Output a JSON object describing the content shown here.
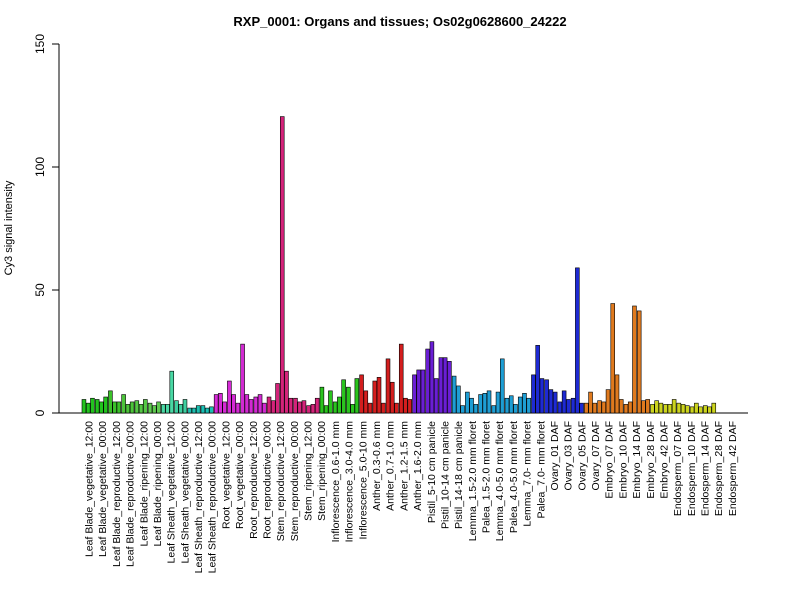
{
  "chart_data": {
    "type": "bar",
    "title": "RXP_0001: Organs and tissues; Os02g0628600_24222",
    "xlabel": "",
    "ylabel": "Cy3 signal intensity",
    "ylim": [
      0,
      150
    ],
    "yticks": [
      0,
      50,
      100,
      150
    ],
    "grid": false,
    "legend": "none",
    "tick_labels": [
      "Leaf Blade_vegetative_12:00",
      "Leaf Blade_vegetative_00:00",
      "Leaf Blade_reproductive_12:00",
      "Leaf Blade_reproductive_00:00",
      "Leaf Blade_ripening_12:00",
      "Leaf Blade_ripening_00:00",
      "Leaf Sheath_vegetative_12:00",
      "Leaf Sheath_vegetative_00:00",
      "Leaf Sheath_reproductive_12:00",
      "Leaf Sheath_reproductive_00:00",
      "Root_vegetative_12:00",
      "Root_vegetative_00:00",
      "Root_reproductive_12:00",
      "Root_reproductive_00:00",
      "Stem_reproductive_12:00",
      "Stem_reproductive_00:00",
      "Stem_ripening_12:00",
      "Stem_ripening_00:00",
      "Inflorescence_0.6-1.0 mm",
      "Inflorescence_3.0-4.0 mm",
      "Inflorescence_5.0-10 mm",
      "Anther_0.3-0.6 mm",
      "Anther_0.7-1.0 mm",
      "Anther_1.2-1.5 mm",
      "Anther_1.6-2.0 mm",
      "Pistil_5-10 cm panicle",
      "Pistil_10-14 cm panicle",
      "Pistil_14-18 cm panicle",
      "Lemma_1.5-2.0 mm floret",
      "Palea_1.5-2.0 mm floret",
      "Lemma_4.0-5.0 mm floret",
      "Palea_4.0-5.0 mm floret",
      "Lemma_7.0- mm floret",
      "Palea_7.0- mm floret",
      "Ovary_01 DAF",
      "Ovary_03 DAF",
      "Ovary_05 DAF",
      "Ovary_07 DAF",
      "Embryo_07 DAF",
      "Embryo_10 DAF",
      "Embryo_14 DAF",
      "Embryo_28 DAF",
      "Embryo_42 DAF",
      "Endosperm_07 DAF",
      "Endosperm_10 DAF",
      "Endosperm_14 DAF",
      "Endosperm_28 DAF",
      "Endosperm_42 DAF"
    ],
    "groups": [
      {
        "color": "#22c41e",
        "values": [
          5.5,
          4,
          6
        ]
      },
      {
        "color": "#22c41e",
        "values": [
          5.5,
          4.5,
          6.5
        ]
      },
      {
        "color": "#3bc12a",
        "values": [
          9,
          4.5,
          4.5
        ]
      },
      {
        "color": "#4cc43a",
        "values": [
          7.5,
          3.5,
          4.5
        ]
      },
      {
        "color": "#55c845",
        "values": [
          5,
          3.5,
          5.5
        ]
      },
      {
        "color": "#5fc950",
        "values": [
          4,
          3,
          4.5
        ]
      },
      {
        "color": "#49d8a4",
        "values": [
          3.5,
          3.5,
          17
        ]
      },
      {
        "color": "#3dd0a0",
        "values": [
          5,
          3.5,
          5.5
        ]
      },
      {
        "color": "#1dbfb0",
        "values": [
          2,
          2,
          3
        ]
      },
      {
        "color": "#19c0b5",
        "values": [
          3,
          2,
          2.5
        ]
      },
      {
        "color": "#d62ad6",
        "values": [
          7.5,
          8,
          4.5
        ]
      },
      {
        "color": "#d62ad6",
        "values": [
          13,
          7.5,
          4
        ]
      },
      {
        "color": "#d22ad2",
        "values": [
          28,
          7.5,
          5.5
        ]
      },
      {
        "color": "#d22ad2",
        "values": [
          6.5,
          7.5,
          4
        ]
      },
      {
        "color": "#d4237a",
        "values": [
          6.5,
          5,
          12
        ]
      },
      {
        "color": "#d4237a",
        "values": [
          120.5,
          17,
          6
        ]
      },
      {
        "color": "#d4237a",
        "values": [
          6,
          4.5,
          5
        ]
      },
      {
        "color": "#d4237a",
        "values": [
          3,
          3.5,
          6
        ]
      },
      {
        "color": "#2ac41e",
        "values": [
          10.5,
          3,
          9
        ]
      },
      {
        "color": "#2ac41e",
        "values": [
          4.5,
          6.5,
          13.5
        ]
      },
      {
        "color": "#2ac41e",
        "values": [
          10.5,
          3.5,
          14
        ]
      },
      {
        "color": "#d41e1e",
        "values": [
          15.5,
          9,
          4
        ]
      },
      {
        "color": "#d41e1e",
        "values": [
          13,
          14.5,
          4
        ]
      },
      {
        "color": "#d41e1e",
        "values": [
          22,
          12.5,
          4
        ]
      },
      {
        "color": "#d41e1e",
        "values": [
          28,
          6,
          5.5
        ]
      },
      {
        "color": "#6a1ed4",
        "values": [
          15.5,
          17.5,
          17.5
        ]
      },
      {
        "color": "#6a1ed4",
        "values": [
          26,
          29,
          14
        ]
      },
      {
        "color": "#6a1ed4",
        "values": [
          22.5,
          22.5,
          21
        ]
      },
      {
        "color": "#1e9ed4",
        "values": [
          15,
          11,
          3
        ]
      },
      {
        "color": "#1e9ed4",
        "values": [
          8.5,
          6,
          3.5
        ]
      },
      {
        "color": "#1e9ed4",
        "values": [
          7.5,
          8,
          9
        ]
      },
      {
        "color": "#1e9ed4",
        "values": [
          3,
          8.5,
          22
        ]
      },
      {
        "color": "#1e9ed4",
        "values": [
          6,
          7,
          3.5
        ]
      },
      {
        "color": "#1e9ed4",
        "values": [
          6.5,
          8,
          6
        ]
      },
      {
        "color": "#1e2ad4",
        "values": [
          15.5,
          27.5,
          14
        ]
      },
      {
        "color": "#1e2ad4",
        "values": [
          13.5,
          9.5,
          8.5
        ]
      },
      {
        "color": "#1e2ad4",
        "values": [
          4.5,
          9,
          5.5
        ]
      },
      {
        "color": "#1e2ad4",
        "values": [
          6,
          59,
          4
        ]
      },
      {
        "color": "#e07a1e",
        "values": [
          4,
          8.5,
          4
        ]
      },
      {
        "color": "#e07a1e",
        "values": [
          5,
          4.5,
          9.5
        ]
      },
      {
        "color": "#e07a1e",
        "values": [
          44.5,
          15.5,
          5.5
        ]
      },
      {
        "color": "#e07a1e",
        "values": [
          3.5,
          4.5,
          43.5
        ]
      },
      {
        "color": "#e07a1e",
        "values": [
          41.5,
          5,
          5.5
        ]
      },
      {
        "color": "#ccd41e",
        "values": [
          3.5,
          5,
          4
        ]
      },
      {
        "color": "#ccd41e",
        "values": [
          3.5,
          3.5,
          5.5
        ]
      },
      {
        "color": "#ccd41e",
        "values": [
          4,
          3.5,
          3
        ]
      },
      {
        "color": "#ccd41e",
        "values": [
          2.5,
          4,
          2.5
        ]
      },
      {
        "color": "#ccd41e",
        "values": [
          3,
          2.5,
          4
        ]
      }
    ]
  }
}
